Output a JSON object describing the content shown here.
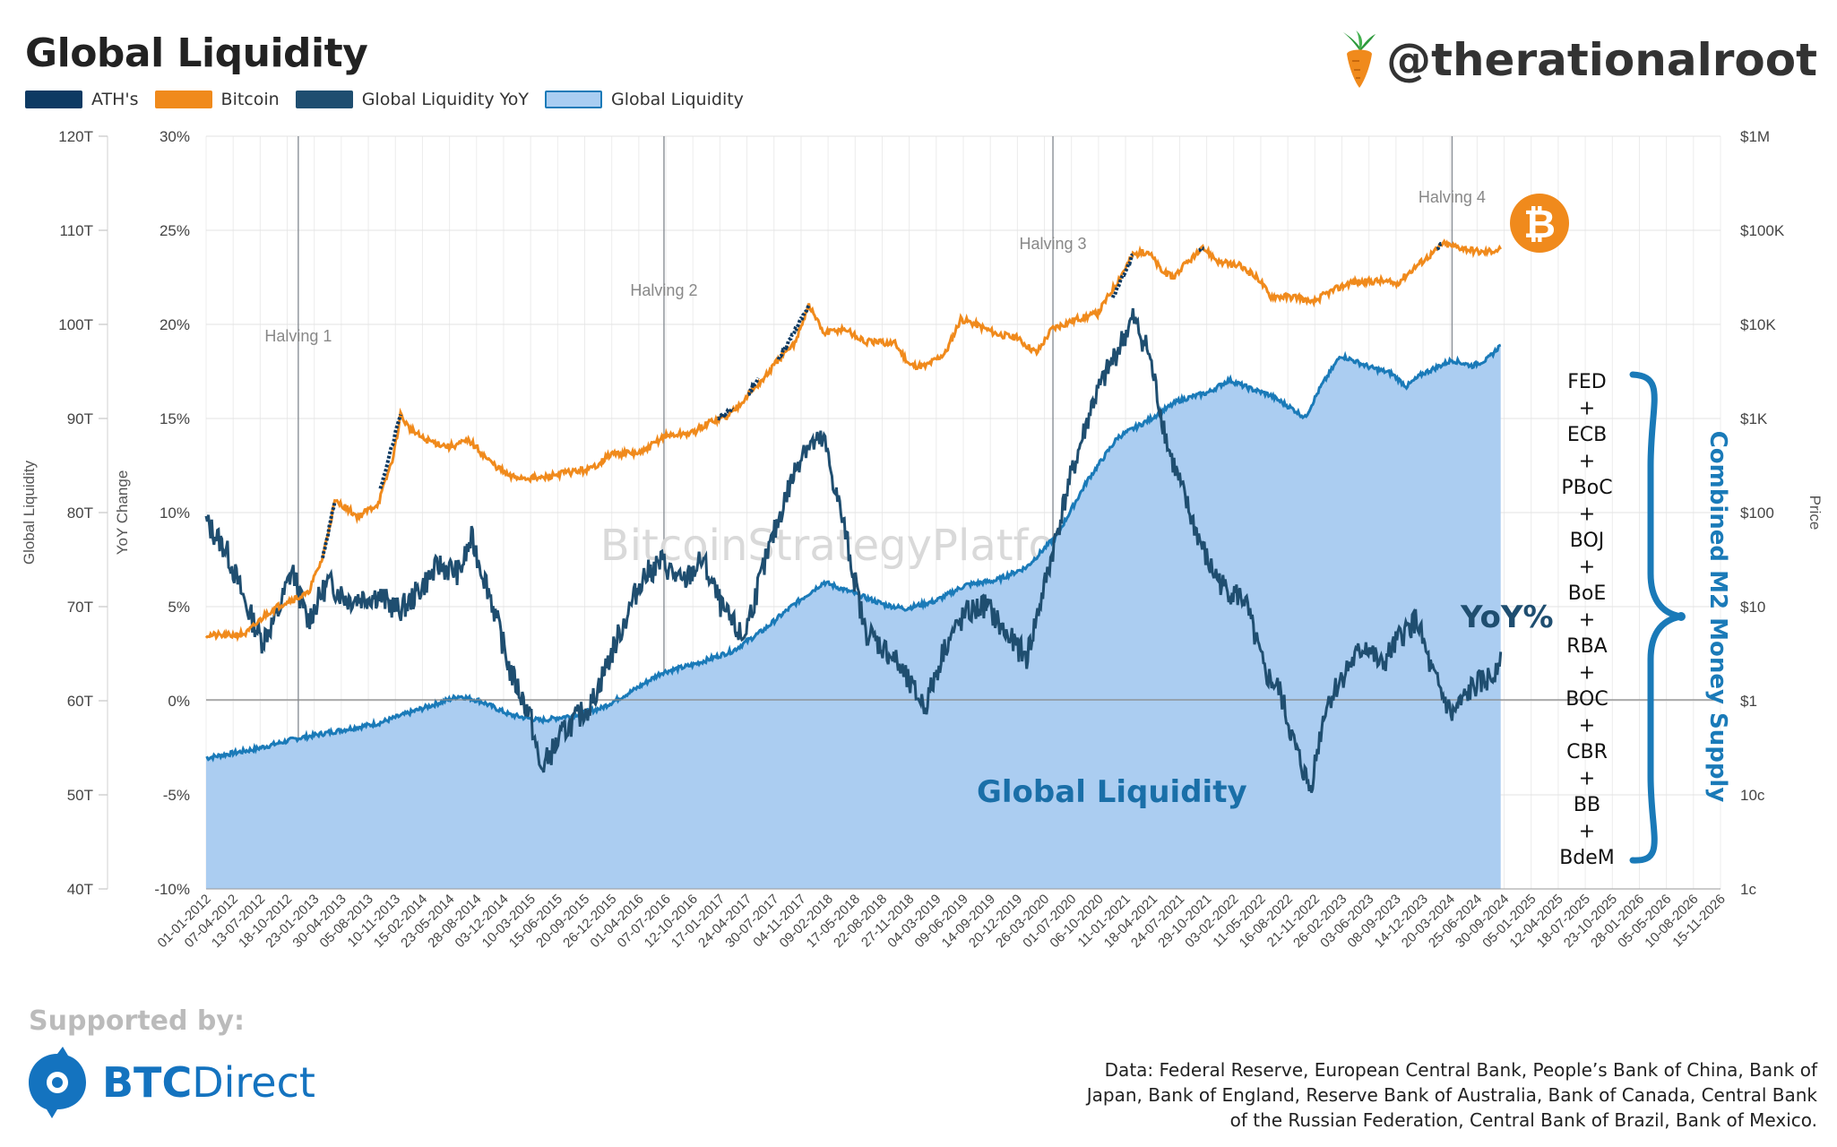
{
  "header": {
    "title": "Global Liquidity",
    "handle": "@therationalroot"
  },
  "legend": [
    {
      "label": "ATH's",
      "color": "#0d3a63"
    },
    {
      "label": "Bitcoin",
      "color": "#f08a1c"
    },
    {
      "label": "Global Liquidity YoY",
      "color": "#1f4e70"
    },
    {
      "label": "Global Liquidity",
      "color": "#a9cdf2"
    }
  ],
  "chart_data": {
    "type": "line",
    "title": "Global Liquidity",
    "watermark": "BitcoinStrategyPlatform.com",
    "x_ticks": [
      "01-01-2012",
      "07-04-2012",
      "13-07-2012",
      "18-10-2012",
      "23-01-2013",
      "30-04-2013",
      "05-08-2013",
      "10-11-2013",
      "15-02-2014",
      "23-05-2014",
      "28-08-2014",
      "03-12-2014",
      "10-03-2015",
      "15-06-2015",
      "20-09-2015",
      "26-12-2015",
      "01-04-2016",
      "07-07-2016",
      "12-10-2016",
      "17-01-2017",
      "24-04-2017",
      "30-07-2017",
      "04-11-2017",
      "09-02-2018",
      "17-05-2018",
      "22-08-2018",
      "27-11-2018",
      "04-03-2019",
      "09-06-2019",
      "14-09-2019",
      "20-12-2019",
      "26-03-2020",
      "01-07-2020",
      "06-10-2020",
      "11-01-2021",
      "18-04-2021",
      "24-07-2021",
      "29-10-2021",
      "03-02-2022",
      "11-05-2022",
      "16-08-2022",
      "21-11-2022",
      "26-02-2023",
      "03-06-2023",
      "08-09-2023",
      "14-12-2023",
      "20-03-2024",
      "25-06-2024",
      "30-09-2024",
      "05-01-2025",
      "12-04-2025",
      "18-07-2025",
      "23-10-2025",
      "28-01-2026",
      "05-05-2026",
      "10-08-2026",
      "15-11-2026"
    ],
    "axes": {
      "left_liquidity": {
        "label": "Global Liquidity",
        "ticks": [
          "120T",
          "110T",
          "100T",
          "90T",
          "80T",
          "70T",
          "60T",
          "50T",
          "40T"
        ],
        "range": [
          40,
          120
        ],
        "unit": "T"
      },
      "left_yoy": {
        "label": "YoY Change",
        "ticks": [
          "30%",
          "25%",
          "20%",
          "15%",
          "10%",
          "5%",
          "0%",
          "-5%",
          "-10%"
        ],
        "range": [
          -10,
          30
        ],
        "unit": "%"
      },
      "right_price": {
        "label": "Price",
        "ticks": [
          "$1M",
          "$100K",
          "$10K",
          "$1K",
          "$100",
          "$10",
          "$1",
          "10c",
          "1c"
        ],
        "range_log10": [
          -2,
          6
        ]
      }
    },
    "halvings": [
      {
        "label": "Halving 1",
        "date": "2012-11-28",
        "year": 2012.91
      },
      {
        "label": "Halving 2",
        "date": "2016-07-09",
        "year": 2016.52
      },
      {
        "label": "Halving 3",
        "date": "2020-05-11",
        "year": 2020.36
      },
      {
        "label": "Halving 4",
        "date": "2024-04-20",
        "year": 2024.3
      }
    ],
    "series": [
      {
        "name": "Global Liquidity",
        "unit": "T",
        "color": "#1a7ab8",
        "fill": "#abcdf1",
        "points": [
          [
            2012.0,
            53.9
          ],
          [
            2012.5,
            54.9
          ],
          [
            2012.9,
            56.0
          ],
          [
            2013.3,
            56.8
          ],
          [
            2013.7,
            57.6
          ],
          [
            2014.0,
            58.7
          ],
          [
            2014.5,
            60.5
          ],
          [
            2014.7,
            60.0
          ],
          [
            2015.0,
            58.5
          ],
          [
            2015.3,
            57.9
          ],
          [
            2015.6,
            58.4
          ],
          [
            2015.9,
            59.2
          ],
          [
            2016.2,
            61.0
          ],
          [
            2016.5,
            63.0
          ],
          [
            2016.8,
            63.8
          ],
          [
            2017.2,
            65.3
          ],
          [
            2017.5,
            67.5
          ],
          [
            2017.8,
            70.2
          ],
          [
            2018.1,
            72.6
          ],
          [
            2018.4,
            71.4
          ],
          [
            2018.7,
            70.2
          ],
          [
            2018.9,
            69.8
          ],
          [
            2019.2,
            70.6
          ],
          [
            2019.5,
            72.3
          ],
          [
            2019.8,
            72.8
          ],
          [
            2020.1,
            74.2
          ],
          [
            2020.4,
            77.6
          ],
          [
            2020.7,
            83.4
          ],
          [
            2021.0,
            88.0
          ],
          [
            2021.3,
            89.8
          ],
          [
            2021.6,
            91.9
          ],
          [
            2021.9,
            92.8
          ],
          [
            2022.1,
            94.1
          ],
          [
            2022.3,
            93.2
          ],
          [
            2022.5,
            92.5
          ],
          [
            2022.7,
            91.2
          ],
          [
            2022.85,
            90.1
          ],
          [
            2023.0,
            93.3
          ],
          [
            2023.2,
            96.7
          ],
          [
            2023.5,
            95.4
          ],
          [
            2023.7,
            94.8
          ],
          [
            2023.85,
            93.4
          ],
          [
            2024.0,
            94.7
          ],
          [
            2024.3,
            96.2
          ],
          [
            2024.5,
            95.6
          ],
          [
            2024.65,
            96.3
          ],
          [
            2024.78,
            97.8
          ]
        ]
      },
      {
        "name": "Global Liquidity YoY",
        "unit": "%",
        "color": "#1f4e70",
        "points": [
          [
            2012.0,
            9.5
          ],
          [
            2012.2,
            8.0
          ],
          [
            2012.4,
            5.0
          ],
          [
            2012.55,
            3.2
          ],
          [
            2012.7,
            4.5
          ],
          [
            2012.85,
            7.0
          ],
          [
            2013.0,
            4.2
          ],
          [
            2013.2,
            6.3
          ],
          [
            2013.4,
            5.4
          ],
          [
            2013.7,
            5.6
          ],
          [
            2013.9,
            4.8
          ],
          [
            2014.0,
            5.2
          ],
          [
            2014.3,
            7.2
          ],
          [
            2014.5,
            6.8
          ],
          [
            2014.62,
            8.6
          ],
          [
            2014.8,
            5.7
          ],
          [
            2015.0,
            1.6
          ],
          [
            2015.2,
            -0.8
          ],
          [
            2015.3,
            -3.7
          ],
          [
            2015.55,
            -1.5
          ],
          [
            2015.8,
            -0.2
          ],
          [
            2016.0,
            2.5
          ],
          [
            2016.3,
            6.5
          ],
          [
            2016.5,
            7.4
          ],
          [
            2016.7,
            6.2
          ],
          [
            2016.9,
            7.5
          ],
          [
            2017.1,
            4.8
          ],
          [
            2017.3,
            3.3
          ],
          [
            2017.5,
            7.0
          ],
          [
            2017.7,
            10.5
          ],
          [
            2017.9,
            13.5
          ],
          [
            2018.1,
            13.8
          ],
          [
            2018.3,
            9.2
          ],
          [
            2018.5,
            3.8
          ],
          [
            2018.8,
            2.2
          ],
          [
            2018.95,
            0.8
          ],
          [
            2019.1,
            -0.3
          ],
          [
            2019.3,
            3.0
          ],
          [
            2019.5,
            4.6
          ],
          [
            2019.7,
            5.1
          ],
          [
            2019.9,
            3.5
          ],
          [
            2020.1,
            2.3
          ],
          [
            2020.25,
            5.5
          ],
          [
            2020.5,
            11.2
          ],
          [
            2020.75,
            15.8
          ],
          [
            2020.95,
            18.1
          ],
          [
            2021.15,
            20.3
          ],
          [
            2021.3,
            18.6
          ],
          [
            2021.5,
            13.4
          ],
          [
            2021.7,
            10.1
          ],
          [
            2021.9,
            7.2
          ],
          [
            2022.05,
            6.0
          ],
          [
            2022.25,
            5.4
          ],
          [
            2022.45,
            1.5
          ],
          [
            2022.6,
            0.5
          ],
          [
            2022.75,
            -2.5
          ],
          [
            2022.9,
            -4.7
          ],
          [
            2023.05,
            -0.3
          ],
          [
            2023.25,
            1.6
          ],
          [
            2023.45,
            3.0
          ],
          [
            2023.6,
            1.8
          ],
          [
            2023.8,
            3.5
          ],
          [
            2023.95,
            4.3
          ],
          [
            2024.1,
            1.5
          ],
          [
            2024.3,
            -0.8
          ],
          [
            2024.5,
            0.7
          ],
          [
            2024.7,
            1.3
          ],
          [
            2024.78,
            2.6
          ]
        ]
      },
      {
        "name": "Bitcoin",
        "unit": "USD (log)",
        "color": "#f08a1c",
        "points": [
          [
            2012.0,
            5.0
          ],
          [
            2012.2,
            4.9
          ],
          [
            2012.4,
            5.2
          ],
          [
            2012.6,
            8.5
          ],
          [
            2012.8,
            11.5
          ],
          [
            2013.0,
            13.5
          ],
          [
            2013.15,
            33.0
          ],
          [
            2013.27,
            130
          ],
          [
            2013.35,
            120
          ],
          [
            2013.5,
            90
          ],
          [
            2013.7,
            125
          ],
          [
            2013.85,
            400
          ],
          [
            2013.92,
            1100
          ],
          [
            2014.0,
            800
          ],
          [
            2014.15,
            600
          ],
          [
            2014.4,
            500
          ],
          [
            2014.6,
            580
          ],
          [
            2014.8,
            350
          ],
          [
            2015.0,
            240
          ],
          [
            2015.3,
            230
          ],
          [
            2015.5,
            260
          ],
          [
            2015.8,
            290
          ],
          [
            2016.0,
            420
          ],
          [
            2016.3,
            430
          ],
          [
            2016.52,
            650
          ],
          [
            2016.8,
            700
          ],
          [
            2017.0,
            950
          ],
          [
            2017.15,
            1050
          ],
          [
            2017.35,
            1800
          ],
          [
            2017.5,
            2600
          ],
          [
            2017.65,
            4200
          ],
          [
            2017.8,
            6000
          ],
          [
            2017.95,
            16000
          ],
          [
            2018.1,
            8000
          ],
          [
            2018.3,
            9000
          ],
          [
            2018.5,
            6500
          ],
          [
            2018.8,
            6300
          ],
          [
            2018.95,
            3700
          ],
          [
            2019.1,
            3600
          ],
          [
            2019.3,
            5000
          ],
          [
            2019.45,
            11500
          ],
          [
            2019.6,
            10000
          ],
          [
            2019.8,
            8000
          ],
          [
            2020.0,
            7200
          ],
          [
            2020.2,
            5000
          ],
          [
            2020.35,
            9000
          ],
          [
            2020.6,
            11500
          ],
          [
            2020.8,
            13000
          ],
          [
            2021.0,
            29000
          ],
          [
            2021.15,
            55000
          ],
          [
            2021.3,
            60000
          ],
          [
            2021.45,
            35000
          ],
          [
            2021.55,
            32000
          ],
          [
            2021.7,
            47000
          ],
          [
            2021.85,
            64000
          ],
          [
            2022.0,
            46000
          ],
          [
            2022.2,
            42000
          ],
          [
            2022.4,
            30000
          ],
          [
            2022.5,
            20000
          ],
          [
            2022.8,
            19500
          ],
          [
            2022.9,
            16500
          ],
          [
            2023.05,
            21000
          ],
          [
            2023.3,
            28000
          ],
          [
            2023.6,
            29000
          ],
          [
            2023.75,
            27000
          ],
          [
            2023.95,
            42000
          ],
          [
            2024.15,
            62000
          ],
          [
            2024.2,
            72000
          ],
          [
            2024.4,
            65000
          ],
          [
            2024.6,
            58000
          ],
          [
            2024.78,
            63000
          ]
        ]
      },
      {
        "name": "ATH's",
        "unit": "USD (log)",
        "color": "#0d3a63",
        "segments": [
          [
            [
              2013.15,
              33.0
            ],
            [
              2013.27,
              130
            ]
          ],
          [
            [
              2013.72,
              180
            ],
            [
              2013.92,
              1100
            ]
          ],
          [
            [
              2017.05,
              1000
            ],
            [
              2017.2,
              1250
            ]
          ],
          [
            [
              2017.35,
              1800
            ],
            [
              2017.45,
              2700
            ]
          ],
          [
            [
              2017.65,
              4200
            ],
            [
              2017.95,
              16000
            ]
          ],
          [
            [
              2020.95,
              19000
            ],
            [
              2021.15,
              55000
            ]
          ],
          [
            [
              2021.8,
              60000
            ],
            [
              2021.85,
              64000
            ]
          ],
          [
            [
              2024.15,
              62000
            ],
            [
              2024.2,
              72000
            ]
          ]
        ]
      }
    ],
    "annotations": {
      "yoy_label": "YoY%",
      "liquidity_label": "Global Liquidity",
      "combined_label": "Combined M2 Money Supply",
      "central_banks": [
        "FED",
        "+",
        "ECB",
        "+",
        "PBoC",
        "+",
        "BOJ",
        "+",
        "BoE",
        "+",
        "RBA",
        "+",
        "BOC",
        "+",
        "CBR",
        "+",
        "BB",
        "+",
        "BdeM"
      ]
    }
  },
  "footer": {
    "supported_by": "Supported by:",
    "btc_direct_bold": "BTC",
    "btc_direct_rest": "Direct",
    "source_text": "Data: Federal Reserve, European Central Bank, People’s Bank of China, Bank of Japan, Bank of England, Reserve Bank of Australia, Bank of Canada, Central Bank of the Russian Federation, Central Bank of Brazil, Bank of Mexico."
  },
  "colors": {
    "bitcoin_orange": "#f08a1c",
    "liquidity_fill": "#abcdf1",
    "liquidity_line": "#1a7ab8",
    "yoy_line": "#1f4e70",
    "ath": "#0d3a63",
    "btcdirect_blue": "#1473bf"
  }
}
